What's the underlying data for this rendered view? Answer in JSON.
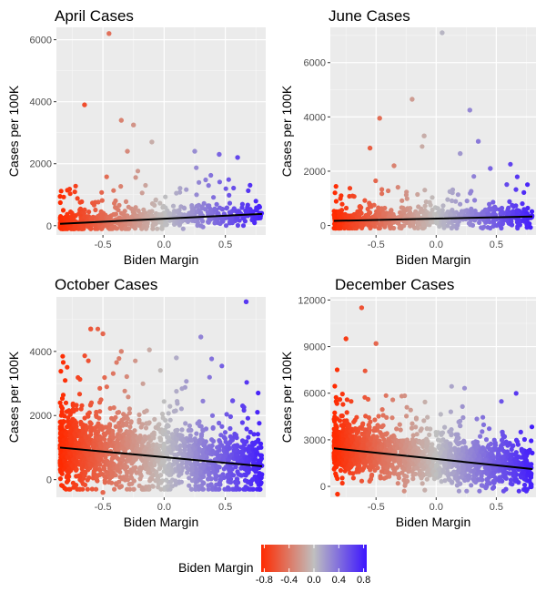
{
  "colorbar": {
    "title": "Biden Margin",
    "ticks": [
      -0.8,
      -0.4,
      0.0,
      0.4,
      0.8
    ],
    "tick_labels": [
      "-0.8",
      "-0.4",
      "0.0",
      "0.4",
      "0.8"
    ],
    "low_color": "#ff2a00",
    "mid_color": "#bfbfbf",
    "high_color": "#3c14ff",
    "range": [
      -0.85,
      0.85
    ]
  },
  "chart_data": [
    {
      "type": "scatter",
      "title": "April Cases",
      "xlabel": "Biden Margin",
      "ylabel": "Cases per 100K",
      "xlim": [
        -0.88,
        0.83
      ],
      "ylim": [
        -300,
        6400
      ],
      "xticks": [
        -0.5,
        0.0,
        0.5
      ],
      "xtick_labels": [
        "-0.5",
        "0.0",
        "0.5"
      ],
      "yticks": [
        0,
        2000,
        4000,
        6000
      ],
      "ytick_labels": [
        "0",
        "2000",
        "4000",
        "6000"
      ],
      "trend": [
        [
          -0.85,
          60
        ],
        [
          0.8,
          380
        ]
      ],
      "highlight_points": [
        [
          -0.45,
          6200
        ],
        [
          -0.65,
          3900
        ],
        [
          -0.35,
          3400
        ],
        [
          -0.25,
          3250
        ],
        [
          -0.3,
          2400
        ],
        [
          -0.1,
          2700
        ],
        [
          0.25,
          2400
        ],
        [
          0.45,
          2300
        ],
        [
          0.6,
          2200
        ],
        [
          0.78,
          600
        ]
      ],
      "cloud": {
        "count": 700,
        "base_mean": 150,
        "base_sd": 200,
        "tail_scale": 500,
        "y_min": -100,
        "y_max": 6300
      },
      "grid": true,
      "legend": "bottom"
    },
    {
      "type": "scatter",
      "title": "June Cases",
      "xlabel": "Biden Margin",
      "ylabel": "Cases per 100K",
      "xlim": [
        -0.88,
        0.83
      ],
      "ylim": [
        -350,
        7300
      ],
      "xticks": [
        -0.5,
        0.0,
        0.5
      ],
      "xtick_labels": [
        "-0.5",
        "0.0",
        "0.5"
      ],
      "yticks": [
        0,
        2000,
        4000,
        6000
      ],
      "ytick_labels": [
        "0",
        "2000",
        "4000",
        "6000"
      ],
      "trend": [
        [
          -0.85,
          170
        ],
        [
          0.8,
          330
        ]
      ],
      "highlight_points": [
        [
          0.05,
          7100
        ],
        [
          -0.2,
          4650
        ],
        [
          0.28,
          4250
        ],
        [
          -0.47,
          3950
        ],
        [
          -0.1,
          3300
        ],
        [
          0.35,
          3100
        ],
        [
          -0.55,
          2850
        ],
        [
          0.2,
          2650
        ],
        [
          0.45,
          2100
        ],
        [
          -0.35,
          2200
        ]
      ],
      "cloud": {
        "count": 750,
        "base_mean": 250,
        "base_sd": 260,
        "tail_scale": 500,
        "y_min": -100,
        "y_max": 7200
      },
      "grid": true,
      "legend": "bottom"
    },
    {
      "type": "scatter",
      "title": "October Cases",
      "xlabel": "Biden Margin",
      "ylabel": "Cases per 100K",
      "xlim": [
        -0.88,
        0.83
      ],
      "ylim": [
        -550,
        5700
      ],
      "xticks": [
        -0.5,
        0.0,
        0.5
      ],
      "xtick_labels": [
        "-0.5",
        "0.0",
        "0.5"
      ],
      "yticks": [
        0,
        2000,
        4000
      ],
      "ytick_labels": [
        "0",
        "2000",
        "4000"
      ],
      "trend": [
        [
          -0.85,
          1000
        ],
        [
          0.8,
          420
        ]
      ],
      "highlight_points": [
        [
          0.67,
          5550
        ],
        [
          -0.6,
          4700
        ],
        [
          -0.5,
          4550
        ],
        [
          -0.35,
          4000
        ],
        [
          -0.12,
          4050
        ],
        [
          0.3,
          4450
        ],
        [
          -0.5,
          -400
        ],
        [
          0.1,
          3800
        ]
      ],
      "cloud": {
        "count": 1800,
        "base_mean": 900,
        "base_sd": 650,
        "tail_scale": 800,
        "y_min": -300,
        "y_max": 4700
      },
      "grid": true,
      "legend": "bottom"
    },
    {
      "type": "scatter",
      "title": "December Cases",
      "xlabel": "Biden Margin",
      "ylabel": "Cases per 100K",
      "xlim": [
        -0.88,
        0.83
      ],
      "ylim": [
        -700,
        12200
      ],
      "xticks": [
        -0.5,
        0.0,
        0.5
      ],
      "xtick_labels": [
        "-0.5",
        "0.0",
        "0.5"
      ],
      "yticks": [
        0,
        3000,
        6000,
        9000,
        12000
      ],
      "ytick_labels": [
        "0",
        "3000",
        "6000",
        "9000",
        "12000"
      ],
      "trend": [
        [
          -0.85,
          2450
        ],
        [
          0.8,
          1120
        ]
      ],
      "highlight_points": [
        [
          -0.62,
          11500
        ],
        [
          -0.75,
          9500
        ],
        [
          -0.5,
          9200
        ],
        [
          -0.82,
          -500
        ],
        [
          0.55,
          3500
        ],
        [
          0.2,
          3900
        ]
      ],
      "cloud": {
        "count": 1800,
        "base_mean": 2100,
        "base_sd": 900,
        "tail_scale": 1000,
        "y_min": -300,
        "y_max": 8000
      },
      "grid": true,
      "legend": "bottom"
    }
  ]
}
